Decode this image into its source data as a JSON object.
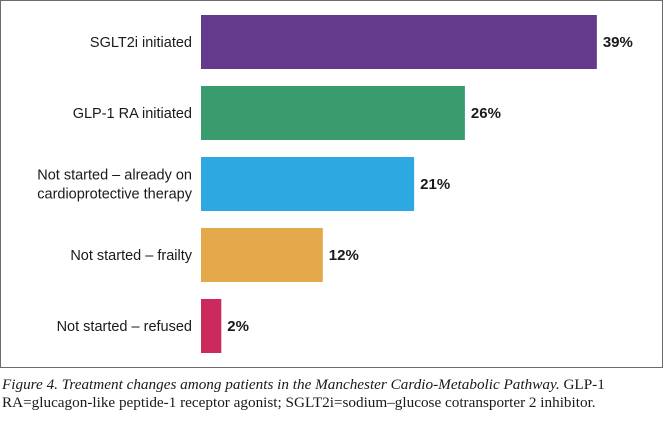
{
  "chart_data": {
    "type": "bar",
    "orientation": "horizontal",
    "categories": [
      [
        "SGLT2i initiated"
      ],
      [
        "GLP-1 RA initiated"
      ],
      [
        "Not started – already on",
        "cardioprotective therapy"
      ],
      [
        "Not started – frailty"
      ],
      [
        "Not started – refused"
      ]
    ],
    "values": [
      39,
      26,
      21,
      12,
      2
    ],
    "value_labels": [
      "39%",
      "26%",
      "21%",
      "12%",
      "2%"
    ],
    "colors": [
      "#633a8c",
      "#3a9b6f",
      "#2ea8e0",
      "#e3a84a",
      "#cc2a5c"
    ],
    "title": "",
    "xlabel": "",
    "ylabel": "",
    "xlim": [
      0,
      40
    ],
    "grid": false,
    "legend": "none"
  },
  "caption": {
    "title": "Figure 4. Treatment changes among patients in the Manchester Cardio-Metabolic Pathway.",
    "text": "GLP-1 RA=glucagon-like peptide-1 receptor agonist; SGLT2i=sodium–glucose cotransporter 2 inhibitor."
  }
}
